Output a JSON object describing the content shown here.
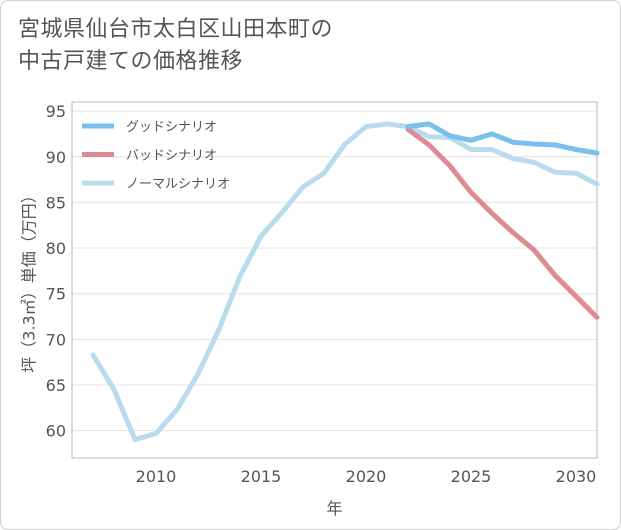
{
  "title_lines": [
    "宮城県仙台市太白区山田本町の",
    "中古戸建ての価格推移"
  ],
  "chart_data": {
    "type": "line",
    "title": "宮城県仙台市太白区山田本町の中古戸建ての価格推移",
    "xlabel": "年",
    "ylabel": "坪（3.3㎡）単価（万円）",
    "xlim": [
      2006,
      2031
    ],
    "ylim": [
      57,
      96
    ],
    "xticks": [
      2010,
      2015,
      2020,
      2025,
      2030
    ],
    "yticks": [
      60,
      65,
      70,
      75,
      80,
      85,
      90,
      95
    ],
    "grid": "horizontal",
    "legend_position": "top-left",
    "series": [
      {
        "name": "グッドシナリオ",
        "color": "#7bbfee",
        "x": [
          2022,
          2023,
          2024,
          2025,
          2026,
          2027,
          2028,
          2029,
          2030,
          2031
        ],
        "values": [
          93.3,
          93.6,
          92.3,
          91.8,
          92.5,
          91.6,
          91.4,
          91.3,
          90.8,
          90.4
        ]
      },
      {
        "name": "バッドシナリオ",
        "color": "#de8c94",
        "x": [
          2022,
          2023,
          2024,
          2025,
          2026,
          2027,
          2028,
          2029,
          2030,
          2031
        ],
        "values": [
          93.0,
          91.3,
          89.0,
          86.1,
          83.8,
          81.7,
          79.8,
          77.0,
          74.7,
          72.4
        ]
      },
      {
        "name": "ノーマルシナリオ",
        "color": "#b9dcec",
        "x": [
          2007,
          2008,
          2009,
          2010,
          2011,
          2012,
          2013,
          2014,
          2015,
          2016,
          2017,
          2018,
          2019,
          2020,
          2021,
          2022,
          2023,
          2024,
          2025,
          2026,
          2027,
          2028,
          2029,
          2030,
          2031
        ],
        "values": [
          68.3,
          64.5,
          59.0,
          59.7,
          62.3,
          66.2,
          71.1,
          76.9,
          81.3,
          83.9,
          86.7,
          88.2,
          91.4,
          93.3,
          93.6,
          93.3,
          92.2,
          92.1,
          90.8,
          90.8,
          89.8,
          89.4,
          88.3,
          88.2,
          87.0
        ]
      }
    ]
  }
}
